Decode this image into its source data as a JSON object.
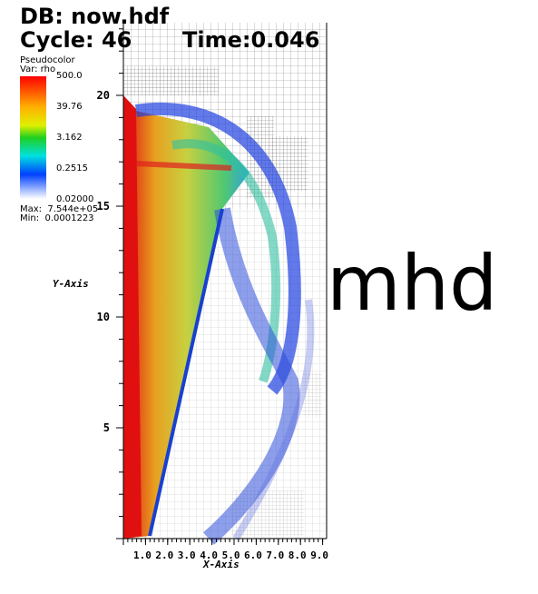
{
  "header": {
    "database": "DB: now.hdf",
    "cycle": "Cycle: 46",
    "time": "Time:0.046"
  },
  "legend": {
    "plot": "Pseudocolor",
    "variable": "Var: rho",
    "labels": [
      "500.0",
      "39.76",
      "3.162",
      "0.2515",
      "0.02000"
    ],
    "max": "Max:  7.544e+05",
    "min": "Min:  0.0001223"
  },
  "axes": {
    "y_title": "Y-Axis",
    "y_ticks": [
      20,
      15,
      10,
      5
    ],
    "x_title": "X-Axis",
    "x_ticks": [
      "1.0",
      "2.0",
      "3.0",
      "4.0",
      "5.0",
      "6.0",
      "7.0",
      "8.0",
      "9.0"
    ]
  },
  "annotation": "mhd"
}
